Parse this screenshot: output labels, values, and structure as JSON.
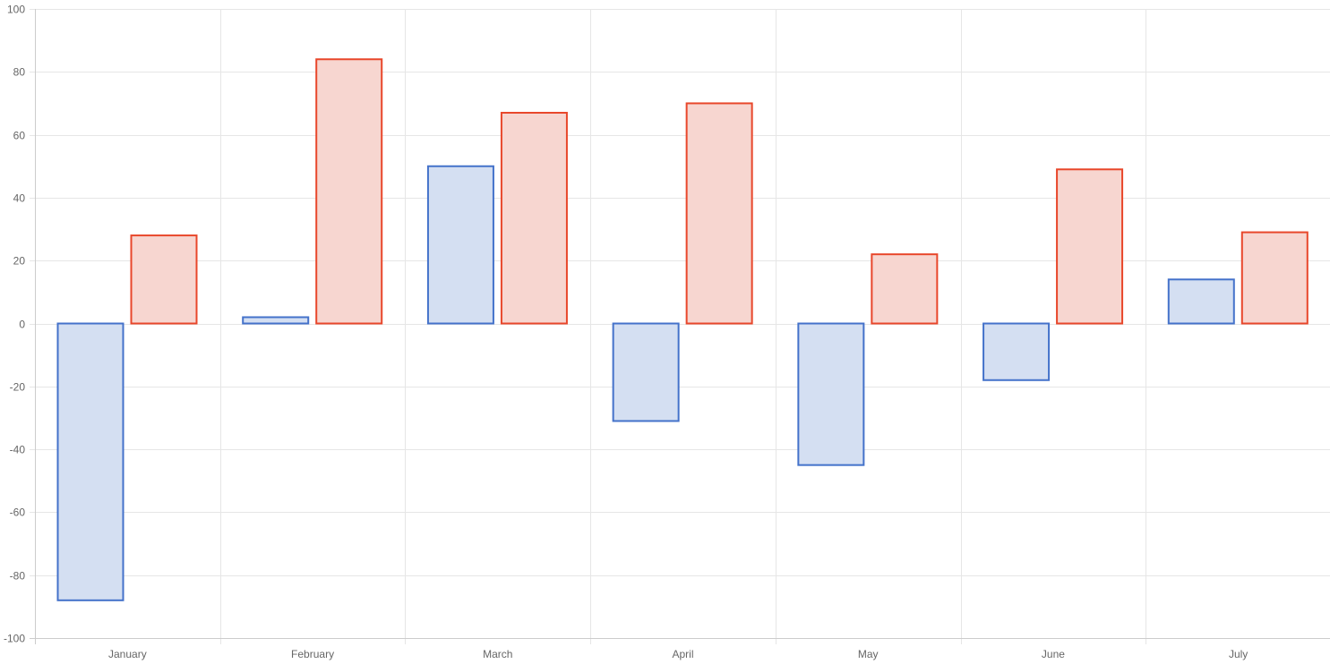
{
  "chart_data": {
    "type": "bar",
    "categories": [
      "January",
      "February",
      "March",
      "April",
      "May",
      "June",
      "July"
    ],
    "series": [
      {
        "values": [
          -88,
          2,
          50,
          -31,
          -45,
          -18,
          14
        ],
        "border_color": "#4472ca",
        "fill_color": "#d4dff2"
      },
      {
        "values": [
          28,
          84,
          67,
          70,
          22,
          49,
          29
        ],
        "border_color": "#e8472b",
        "fill_color": "#f7d6d0"
      }
    ],
    "ylim": [
      -100,
      100
    ],
    "y_ticks": [
      100,
      80,
      60,
      40,
      20,
      0,
      -20,
      -40,
      -60,
      -80,
      -100
    ],
    "grid": true,
    "title": "",
    "xlabel": "",
    "ylabel": ""
  },
  "colors": {
    "grid": "#e6e6e6",
    "axis": "#cccccc",
    "tick_text": "#666666"
  }
}
